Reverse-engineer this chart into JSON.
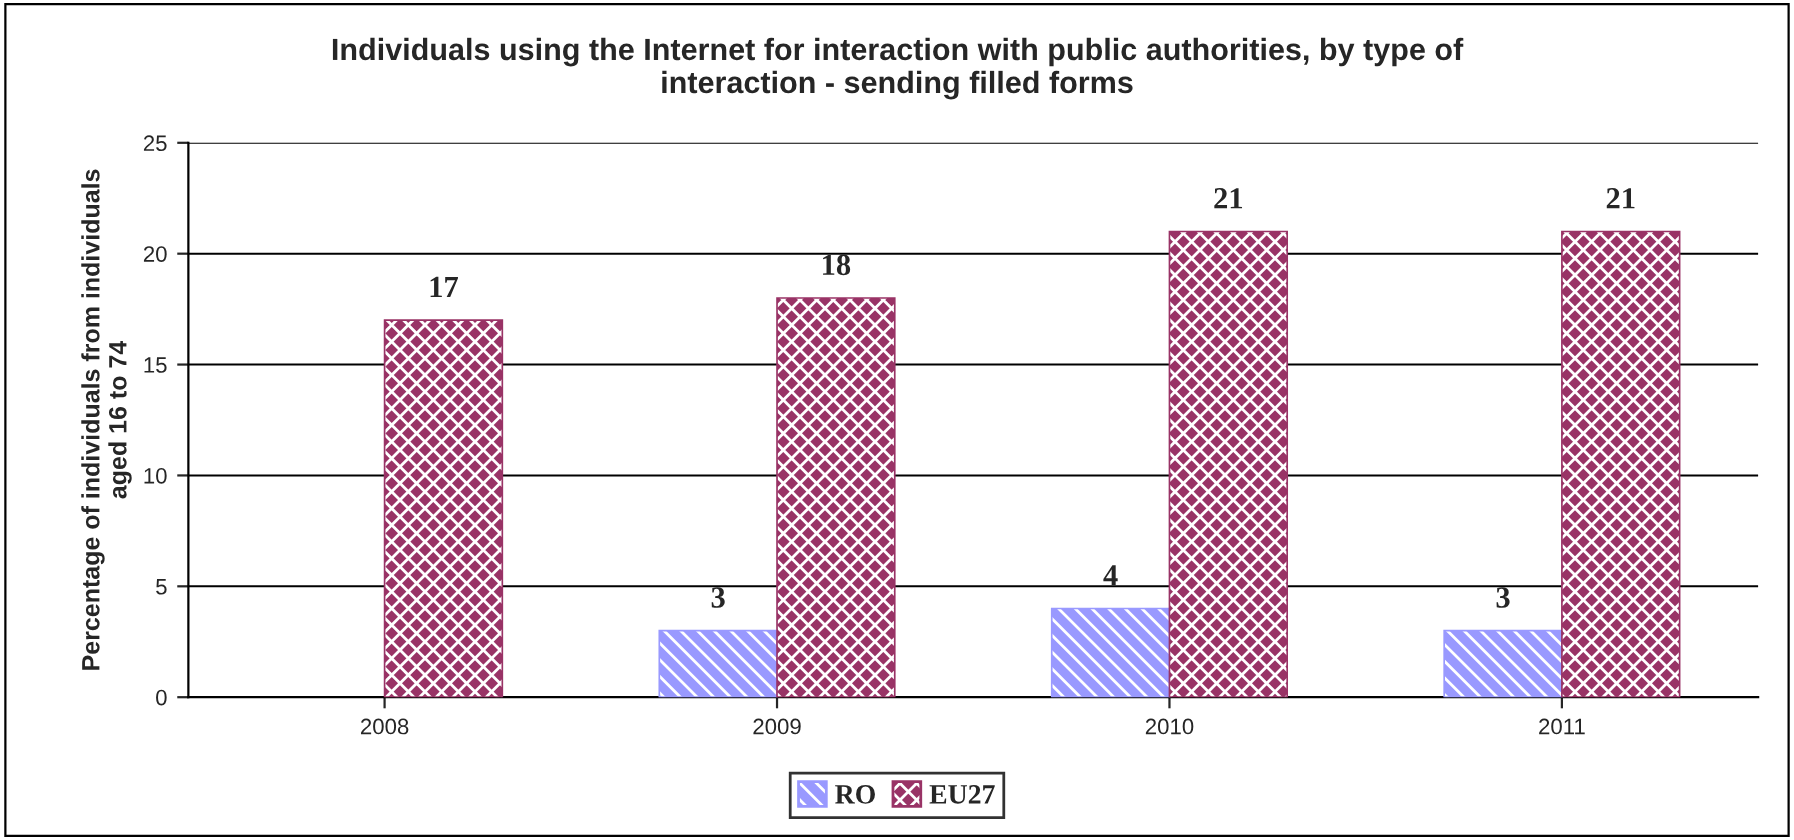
{
  "chart_data": {
    "type": "bar",
    "title": "Individuals using the Internet for interaction with public authorities, by type of\ninteraction - sending filled forms",
    "ylabel": "Percentage of individuals from individuals\naged 16 to 74",
    "categories": [
      "2008",
      "2009",
      "2010",
      "2011"
    ],
    "series": [
      {
        "name": "RO",
        "color": "#9999ff",
        "values": [
          null,
          3,
          4,
          3
        ]
      },
      {
        "name": "EU27",
        "color": "#993366",
        "values": [
          17,
          18,
          21,
          21
        ]
      }
    ],
    "ylim": [
      0,
      25
    ],
    "yticks": [
      0,
      5,
      10,
      15,
      20,
      25
    ],
    "grid": "y",
    "legend": "bottom",
    "data_labels": true
  }
}
